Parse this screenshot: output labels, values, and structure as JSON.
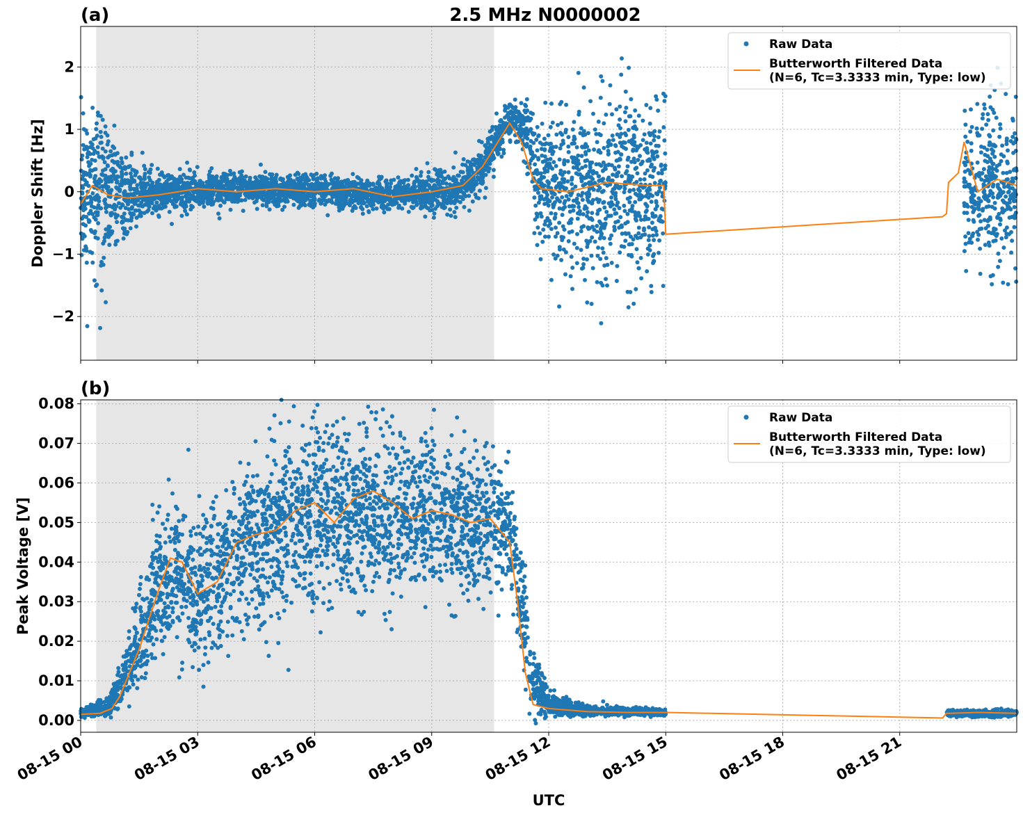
{
  "figure": {
    "title": "2.5 MHz N0000002",
    "xlabel": "UTC",
    "x_ticks": [
      "08-15 00",
      "08-15 03",
      "08-15 06",
      "08-15 09",
      "08-15 12",
      "08-15 15",
      "08-15 18",
      "08-15 21"
    ],
    "colors": {
      "raw": "#1f77b4",
      "filtered": "#ff7f0e",
      "night_shading": "#e6e6e6",
      "grid": "#b0b0b0"
    }
  },
  "legend": {
    "raw_label": "Raw Data",
    "filtered_label_line1": "Butterworth Filtered Data",
    "filtered_label_line2": "(N=6, Tc=3.3333 min, Type: low)",
    "placement": "top-right"
  },
  "chart_data": [
    {
      "panel_label": "(a)",
      "type": "scatter",
      "ylabel": "Doppler Shift [Hz]",
      "xlim_hours": [
        0,
        24
      ],
      "ylim": [
        -2.7,
        2.65
      ],
      "y_ticks": [
        2,
        1,
        0,
        -1,
        -2
      ],
      "y_tick_labels": [
        "2",
        "1",
        "0",
        "−1",
        "−2"
      ],
      "grid": true,
      "shaded_interval_hours": [
        0.4,
        10.6
      ],
      "series": [
        {
          "name": "Raw Data",
          "envelope": [
            {
              "x": 0.0,
              "center": 0.0,
              "spread": 1.1
            },
            {
              "x": 0.3,
              "center": 0.1,
              "spread": 1.4
            },
            {
              "x": 0.6,
              "center": 0.0,
              "spread": 1.3
            },
            {
              "x": 1.0,
              "center": -0.05,
              "spread": 0.8
            },
            {
              "x": 1.5,
              "center": -0.05,
              "spread": 0.45
            },
            {
              "x": 2.5,
              "center": 0.0,
              "spread": 0.3
            },
            {
              "x": 4.0,
              "center": 0.03,
              "spread": 0.25
            },
            {
              "x": 6.0,
              "center": 0.0,
              "spread": 0.25
            },
            {
              "x": 8.0,
              "center": -0.05,
              "spread": 0.22
            },
            {
              "x": 9.5,
              "center": 0.0,
              "spread": 0.3
            },
            {
              "x": 10.2,
              "center": 0.3,
              "spread": 0.35
            },
            {
              "x": 10.6,
              "center": 0.75,
              "spread": 0.35
            },
            {
              "x": 11.0,
              "center": 1.15,
              "spread": 0.3
            },
            {
              "x": 11.4,
              "center": 1.0,
              "spread": 0.45
            },
            {
              "x": 11.7,
              "center": 0.2,
              "spread": 1.0
            },
            {
              "x": 12.5,
              "center": 0.0,
              "spread": 1.35
            },
            {
              "x": 13.5,
              "center": 0.05,
              "spread": 1.4
            },
            {
              "x": 14.5,
              "center": 0.1,
              "spread": 1.5
            },
            {
              "x": 15.0,
              "center": 0.0,
              "spread": 1.45
            }
          ],
          "data_segments_hours": [
            [
              0,
              15.0
            ],
            [
              22.65,
              24
            ]
          ]
        },
        {
          "name": "Butterworth Filtered Data",
          "x": [
            0.0,
            0.3,
            0.7,
            1.2,
            2.0,
            3.0,
            4.0,
            5.0,
            6.0,
            7.0,
            8.0,
            9.0,
            9.8,
            10.3,
            10.7,
            11.0,
            11.3,
            11.6,
            11.8,
            12.5,
            13.5,
            14.5,
            14.95,
            15.0,
            22.1,
            22.2,
            22.25,
            22.5,
            22.65,
            23.0,
            23.5,
            24.0
          ],
          "y": [
            -0.2,
            0.1,
            -0.05,
            -0.1,
            -0.05,
            0.05,
            0.0,
            0.05,
            0.0,
            0.05,
            -0.08,
            0.0,
            0.1,
            0.4,
            0.8,
            1.1,
            0.8,
            0.2,
            0.05,
            0.0,
            0.15,
            0.1,
            0.1,
            -0.68,
            -0.4,
            -0.35,
            0.15,
            0.3,
            0.8,
            0.0,
            0.2,
            0.1
          ]
        }
      ]
    },
    {
      "panel_label": "(b)",
      "type": "scatter",
      "ylabel": "Peak Voltage [V]",
      "xlim_hours": [
        0,
        24
      ],
      "ylim": [
        -0.003,
        0.081
      ],
      "y_ticks": [
        0.08,
        0.07,
        0.06,
        0.05,
        0.04,
        0.03,
        0.02,
        0.01,
        0.0
      ],
      "y_tick_labels": [
        "0.08",
        "0.07",
        "0.06",
        "0.05",
        "0.04",
        "0.03",
        "0.02",
        "0.01",
        "0.00"
      ],
      "grid": true,
      "shaded_interval_hours": [
        0.4,
        10.6
      ],
      "series": [
        {
          "name": "Raw Data",
          "envelope": [
            {
              "x": 0.0,
              "center": 0.002,
              "spread": 0.001
            },
            {
              "x": 0.7,
              "center": 0.003,
              "spread": 0.002
            },
            {
              "x": 1.0,
              "center": 0.008,
              "spread": 0.005
            },
            {
              "x": 1.5,
              "center": 0.02,
              "spread": 0.012
            },
            {
              "x": 2.0,
              "center": 0.035,
              "spread": 0.016
            },
            {
              "x": 2.5,
              "center": 0.036,
              "spread": 0.02
            },
            {
              "x": 3.0,
              "center": 0.033,
              "spread": 0.018
            },
            {
              "x": 4.0,
              "center": 0.042,
              "spread": 0.02
            },
            {
              "x": 5.0,
              "center": 0.048,
              "spread": 0.021
            },
            {
              "x": 6.0,
              "center": 0.051,
              "spread": 0.022
            },
            {
              "x": 7.0,
              "center": 0.052,
              "spread": 0.021
            },
            {
              "x": 8.0,
              "center": 0.052,
              "spread": 0.021
            },
            {
              "x": 9.0,
              "center": 0.052,
              "spread": 0.019
            },
            {
              "x": 10.5,
              "center": 0.05,
              "spread": 0.016
            },
            {
              "x": 11.0,
              "center": 0.048,
              "spread": 0.015
            },
            {
              "x": 11.3,
              "center": 0.03,
              "spread": 0.014
            },
            {
              "x": 11.6,
              "center": 0.01,
              "spread": 0.008
            },
            {
              "x": 12.0,
              "center": 0.004,
              "spread": 0.003
            },
            {
              "x": 13.0,
              "center": 0.0025,
              "spread": 0.0012
            },
            {
              "x": 15.0,
              "center": 0.002,
              "spread": 0.0008
            }
          ],
          "data_segments_hours": [
            [
              0,
              15.0
            ],
            [
              22.2,
              24
            ]
          ]
        },
        {
          "name": "Butterworth Filtered Data",
          "x": [
            0.0,
            0.5,
            0.8,
            1.0,
            1.5,
            2.0,
            2.3,
            2.6,
            3.0,
            3.5,
            4.0,
            4.5,
            5.0,
            5.5,
            6.0,
            6.5,
            7.0,
            7.5,
            8.0,
            8.5,
            9.0,
            9.5,
            10.0,
            10.5,
            11.0,
            11.2,
            11.4,
            11.6,
            12.0,
            13.0,
            14.0,
            15.0,
            22.1,
            22.2,
            22.3,
            23.0,
            24.0
          ],
          "y": [
            0.0015,
            0.0018,
            0.003,
            0.006,
            0.018,
            0.033,
            0.041,
            0.04,
            0.032,
            0.035,
            0.045,
            0.047,
            0.048,
            0.053,
            0.055,
            0.05,
            0.056,
            0.058,
            0.055,
            0.051,
            0.053,
            0.052,
            0.05,
            0.051,
            0.045,
            0.03,
            0.012,
            0.004,
            0.003,
            0.0022,
            0.002,
            0.002,
            0.0006,
            0.0018,
            0.0018,
            0.002,
            0.0018
          ]
        }
      ]
    }
  ]
}
